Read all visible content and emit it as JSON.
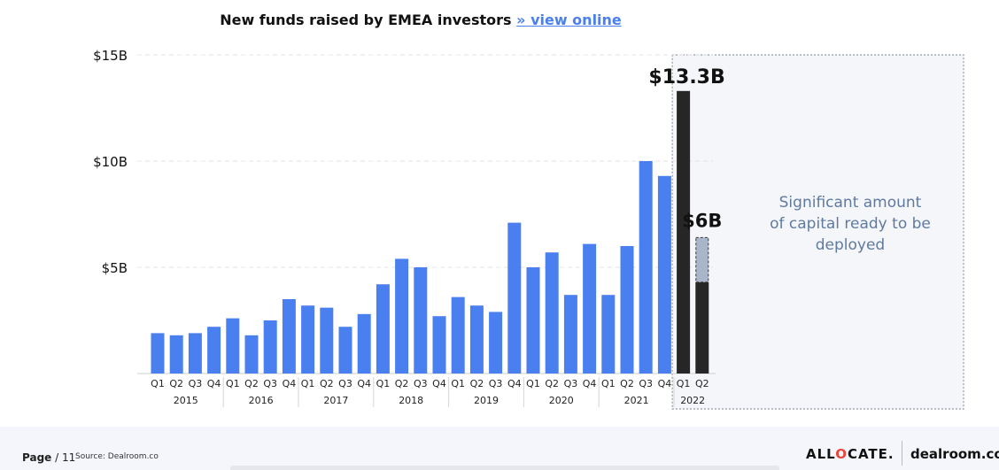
{
  "title": {
    "text": "New funds raised by EMEA investors",
    "link": "» view online"
  },
  "chart_data": {
    "type": "bar",
    "title": "New funds raised by EMEA investors",
    "ylim": [
      0,
      15
    ],
    "yticks": [
      {
        "value": 5,
        "label": "$5B"
      },
      {
        "value": 10,
        "label": "$10B"
      },
      {
        "value": 15,
        "label": "$15B"
      }
    ],
    "grid": true,
    "categories": [
      "Q1",
      "Q2",
      "Q3",
      "Q4",
      "Q1",
      "Q2",
      "Q3",
      "Q4",
      "Q1",
      "Q2",
      "Q3",
      "Q4",
      "Q1",
      "Q2",
      "Q3",
      "Q4",
      "Q1",
      "Q2",
      "Q3",
      "Q4",
      "Q1",
      "Q2",
      "Q3",
      "Q4",
      "Q1",
      "Q2",
      "Q3",
      "Q4",
      "Q1",
      "Q2"
    ],
    "years": [
      {
        "label": "2015",
        "count": 4
      },
      {
        "label": "2016",
        "count": 4
      },
      {
        "label": "2017",
        "count": 4
      },
      {
        "label": "2018",
        "count": 4
      },
      {
        "label": "2019",
        "count": 4
      },
      {
        "label": "2020",
        "count": 4
      },
      {
        "label": "2021",
        "count": 4
      },
      {
        "label": "2022",
        "count": 2
      }
    ],
    "values": [
      1.9,
      1.8,
      1.9,
      2.2,
      2.6,
      1.8,
      2.5,
      3.5,
      3.2,
      3.1,
      2.2,
      2.8,
      4.2,
      5.4,
      5.0,
      2.7,
      3.6,
      3.2,
      2.9,
      7.1,
      5.0,
      5.7,
      3.7,
      6.1,
      3.7,
      6.0,
      10.0,
      9.3,
      13.3,
      4.3
    ],
    "projected": {
      "index": 29,
      "value": 6.4
    },
    "highlight_from": 28,
    "colors": {
      "bar": "#4a7ff0",
      "highlight": "#262626",
      "projected": "#a9b5c8"
    },
    "labels": [
      {
        "index": 28,
        "text": "$13.3B"
      },
      {
        "index": 29,
        "text": "$6B"
      }
    ],
    "annotation": "Significant amount of capital ready to be deployed"
  },
  "footer": {
    "page": "Page",
    "page_number": "/ 11",
    "source": "Source: Dealroom.co",
    "brand_allocate_pre": "ALL",
    "brand_allocate_dot": "O",
    "brand_allocate_post": "CATE.",
    "brand_dealroom": "dealroom.co"
  }
}
